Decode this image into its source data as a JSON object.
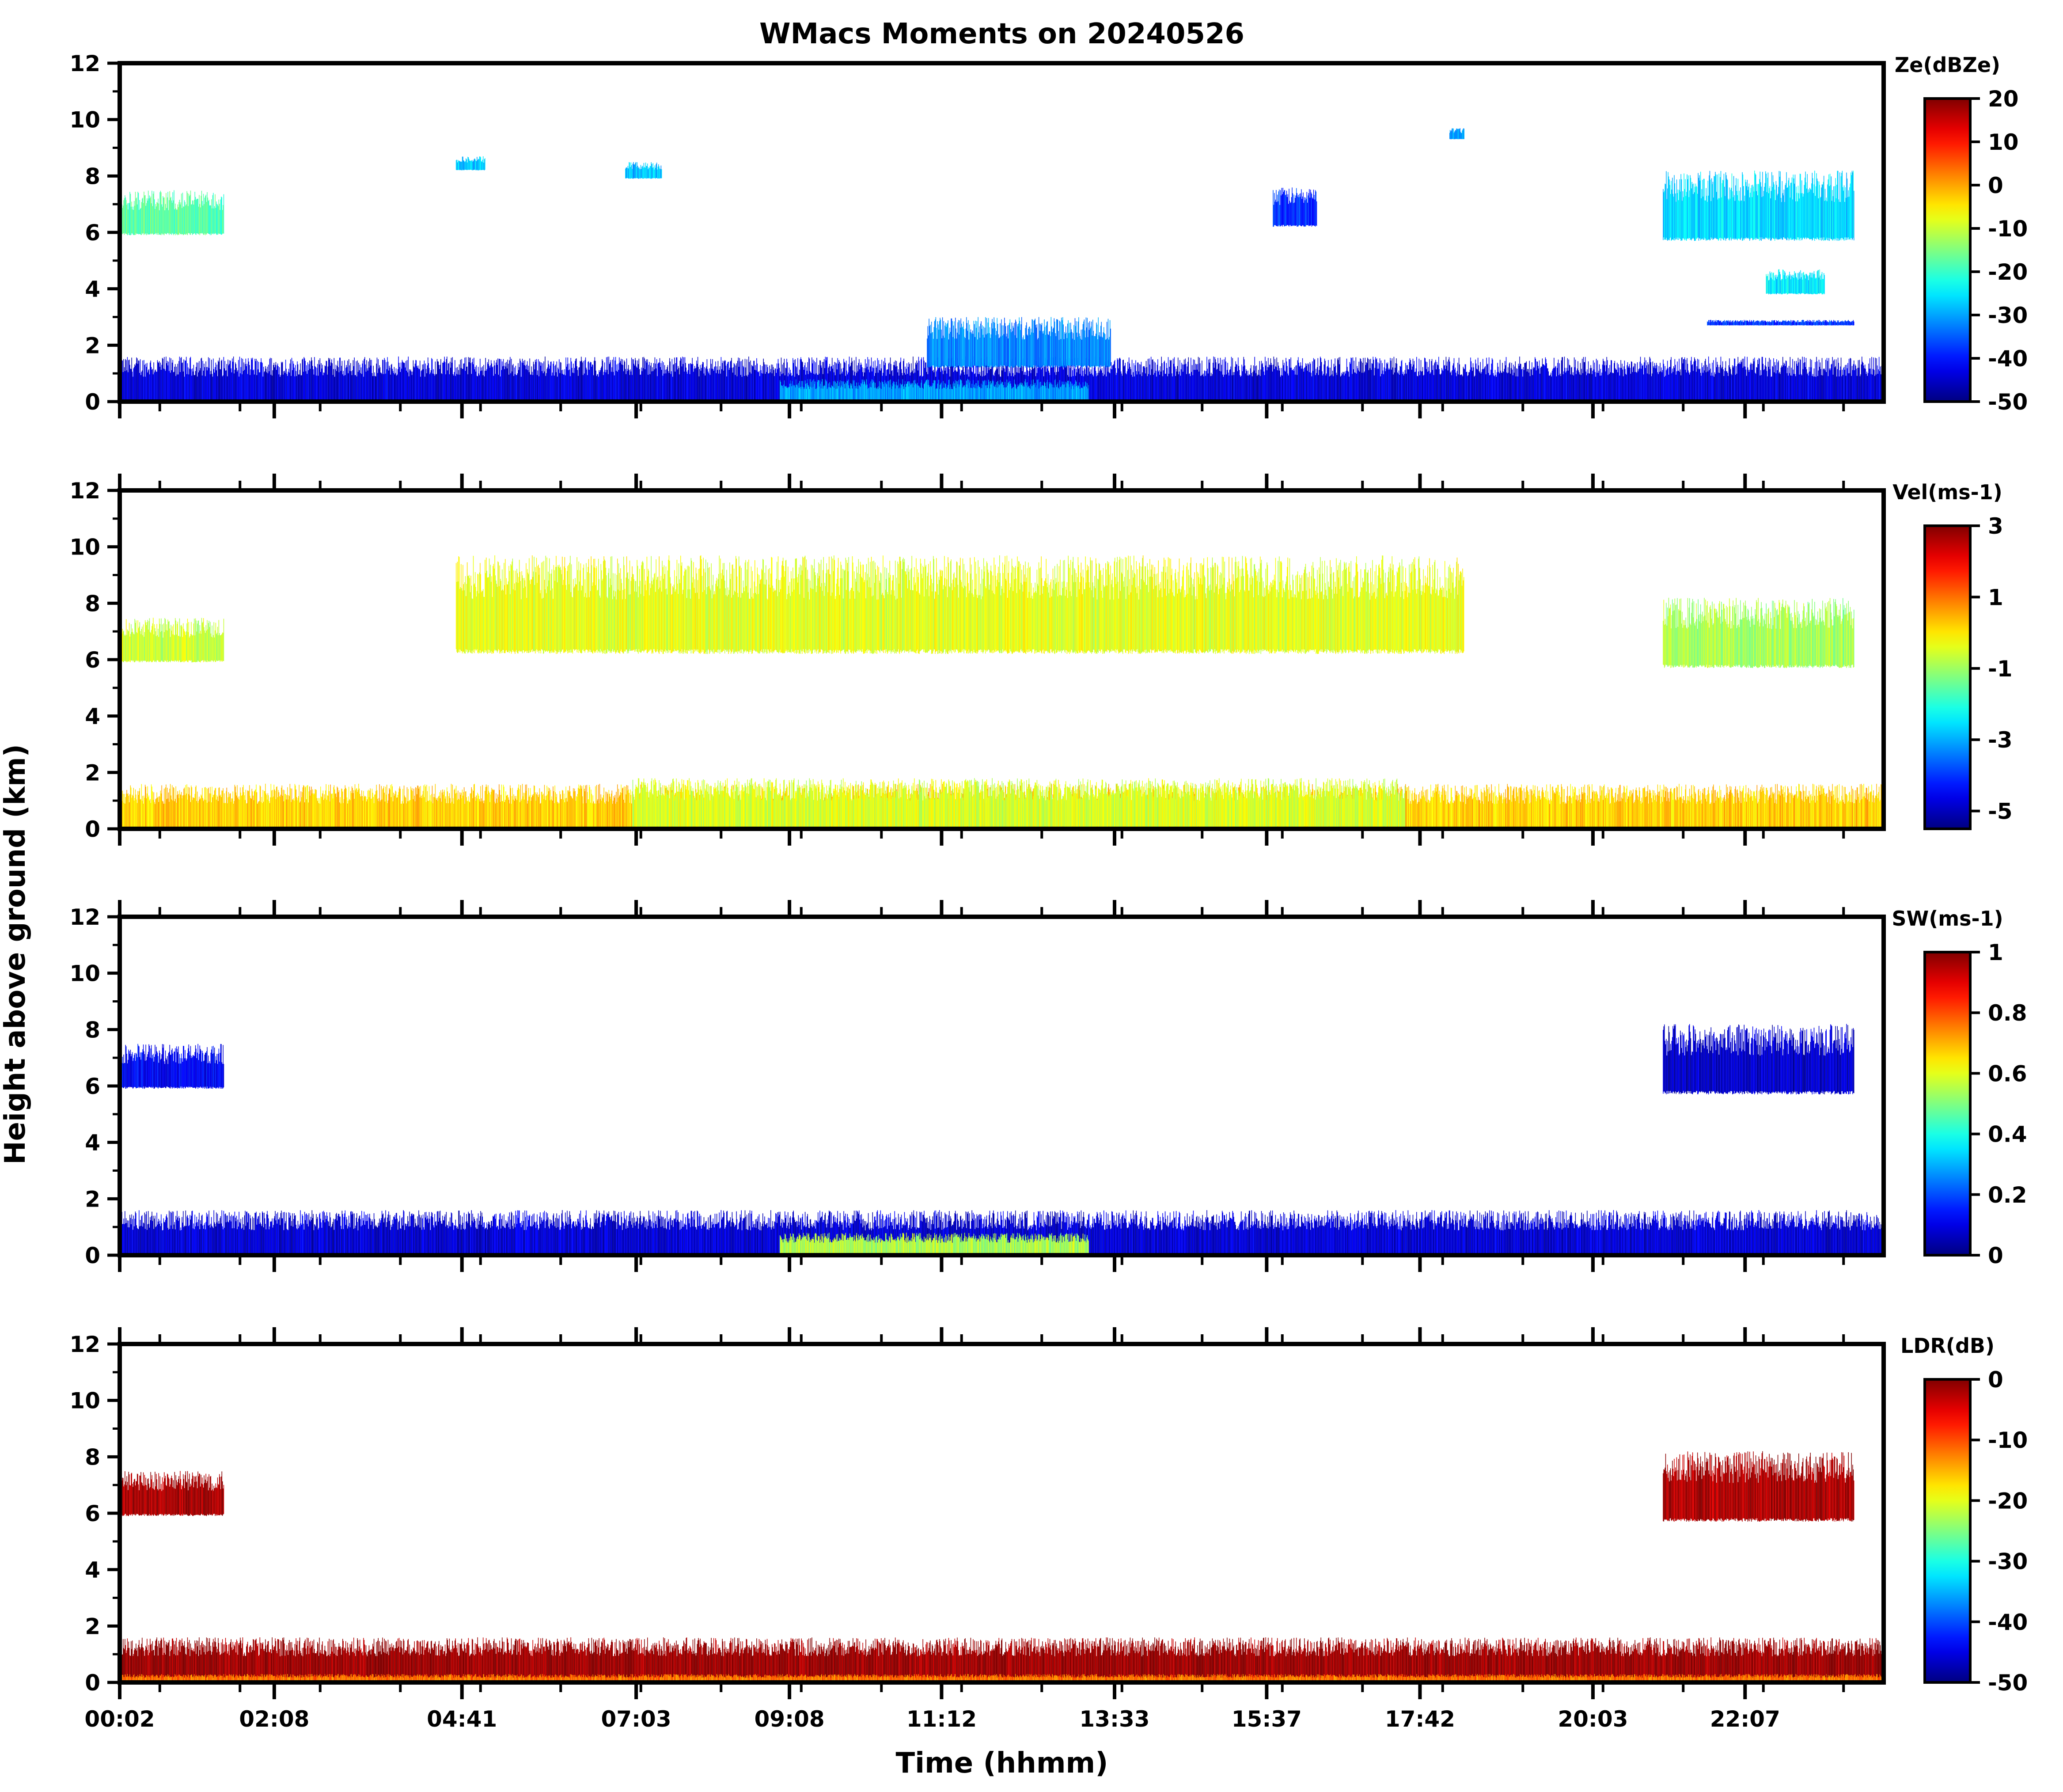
{
  "chart_data": {
    "type": "heatmap",
    "title": "WMacs Moments on 20240526",
    "xlabel": "Time (hhmm)",
    "ylabel": "Height above ground (km)",
    "x_tick_labels": [
      "00:02",
      "02:08",
      "04:41",
      "07:03",
      "09:08",
      "11:12",
      "13:33",
      "15:37",
      "17:42",
      "20:03",
      "22:07"
    ],
    "x_tick_hours": [
      0.033,
      2.133,
      4.683,
      7.05,
      9.133,
      11.2,
      13.55,
      15.617,
      17.7,
      20.05,
      22.117
    ],
    "xlim_hours": [
      0.033,
      24.0
    ],
    "ylim": [
      0,
      12
    ],
    "y_ticks": [
      0,
      2,
      4,
      6,
      8,
      10,
      12
    ],
    "colormap": "jet",
    "panels": [
      {
        "name": "Reflectivity",
        "colorbar_label": "Ze(dBZe)",
        "vmin": -50,
        "vmax": 20,
        "colorbar_ticks": [
          20,
          10,
          0,
          -10,
          -20,
          -30,
          -40,
          -50
        ],
        "features": [
          {
            "region": "boundary layer echo",
            "t_start": 0.033,
            "t_end": 24.0,
            "h_min": 0.0,
            "h_max": 1.6,
            "value": -44
          },
          {
            "region": "boundary layer core",
            "t_start": 9.0,
            "t_end": 13.2,
            "h_min": 0.0,
            "h_max": 0.8,
            "value": -30
          },
          {
            "region": "cirrus 00-01h",
            "t_start": 0.05,
            "t_end": 1.45,
            "h_min": 5.9,
            "h_max": 7.5,
            "value": -18
          },
          {
            "region": "cloud 04h",
            "t_start": 4.6,
            "t_end": 5.0,
            "h_min": 8.2,
            "h_max": 8.7,
            "value": -28
          },
          {
            "region": "cloud 07h",
            "t_start": 6.9,
            "t_end": 7.4,
            "h_min": 7.9,
            "h_max": 8.5,
            "value": -28
          },
          {
            "region": "cloud 16h",
            "t_start": 15.7,
            "t_end": 16.3,
            "h_min": 6.2,
            "h_max": 7.6,
            "value": -38
          },
          {
            "region": "cloud 18h",
            "t_start": 18.1,
            "t_end": 18.3,
            "h_min": 9.3,
            "h_max": 9.7,
            "value": -30
          },
          {
            "region": "cirrus 21-23h",
            "t_start": 21.0,
            "t_end": 23.6,
            "h_min": 5.7,
            "h_max": 8.2,
            "value": -26
          },
          {
            "region": "cloud 22-23h",
            "t_start": 22.4,
            "t_end": 23.2,
            "h_min": 3.8,
            "h_max": 4.7,
            "value": -25
          },
          {
            "region": "thin layer",
            "t_start": 21.6,
            "t_end": 23.6,
            "h_min": 2.7,
            "h_max": 2.9,
            "value": -38
          },
          {
            "region": "convective tops",
            "t_start": 11.0,
            "t_end": 13.5,
            "h_min": 1.2,
            "h_max": 3.0,
            "value": -32
          }
        ]
      },
      {
        "name": "Doppler velocity",
        "colorbar_label": "Vel(ms-1)",
        "vmin": -5.5,
        "vmax": 3,
        "colorbar_ticks": [
          3,
          1,
          -1,
          -3,
          -5
        ],
        "features": [
          {
            "region": "boundary layer",
            "t_start": 0.033,
            "t_end": 24.0,
            "h_min": 0.0,
            "h_max": 1.6,
            "value": 0.2
          },
          {
            "region": "turbulent core",
            "t_start": 7.0,
            "t_end": 17.5,
            "h_min": 0.0,
            "h_max": 1.8,
            "value": -0.5
          },
          {
            "region": "cirrus 00-01h",
            "t_start": 0.05,
            "t_end": 1.45,
            "h_min": 5.9,
            "h_max": 7.5,
            "value": -0.6
          },
          {
            "region": "cirrus 21-23h",
            "t_start": 21.0,
            "t_end": 23.6,
            "h_min": 5.7,
            "h_max": 8.2,
            "value": -0.9
          },
          {
            "region": "clouds aloft",
            "t_start": 4.6,
            "t_end": 18.3,
            "h_min": 6.2,
            "h_max": 9.7,
            "value": -0.4
          }
        ]
      },
      {
        "name": "Spectrum width",
        "colorbar_label": "SW(ms-1)",
        "vmin": 0.0,
        "vmax": 1.0,
        "colorbar_ticks": [
          1.0,
          0.8,
          0.6,
          0.4,
          0.2,
          0.0
        ],
        "features": [
          {
            "region": "boundary layer",
            "t_start": 0.033,
            "t_end": 24.0,
            "h_min": 0.0,
            "h_max": 1.6,
            "value": 0.08
          },
          {
            "region": "convective core",
            "t_start": 9.0,
            "t_end": 13.2,
            "h_min": 0.0,
            "h_max": 0.8,
            "value": 0.55
          },
          {
            "region": "cirrus 00-01h",
            "t_start": 0.05,
            "t_end": 1.45,
            "h_min": 5.9,
            "h_max": 7.5,
            "value": 0.12
          },
          {
            "region": "cirrus 21-23h",
            "t_start": 21.0,
            "t_end": 23.6,
            "h_min": 5.7,
            "h_max": 8.2,
            "value": 0.07
          }
        ]
      },
      {
        "name": "Linear depolarization ratio",
        "colorbar_label": "LDR(dB)",
        "vmin": -50,
        "vmax": 0,
        "colorbar_ticks": [
          0,
          -10,
          -20,
          -30,
          -40,
          -50
        ],
        "features": [
          {
            "region": "boundary layer",
            "t_start": 0.033,
            "t_end": 24.0,
            "h_min": 0.1,
            "h_max": 1.6,
            "value": -1
          },
          {
            "region": "near-surface",
            "t_start": 0.033,
            "t_end": 24.0,
            "h_min": 0.0,
            "h_max": 0.3,
            "value": -12
          },
          {
            "region": "cirrus 00-01h",
            "t_start": 0.05,
            "t_end": 1.45,
            "h_min": 5.9,
            "h_max": 7.5,
            "value": -2
          },
          {
            "region": "cirrus 21-23h",
            "t_start": 21.0,
            "t_end": 23.6,
            "h_min": 5.7,
            "h_max": 8.2,
            "value": -2
          }
        ]
      }
    ]
  }
}
